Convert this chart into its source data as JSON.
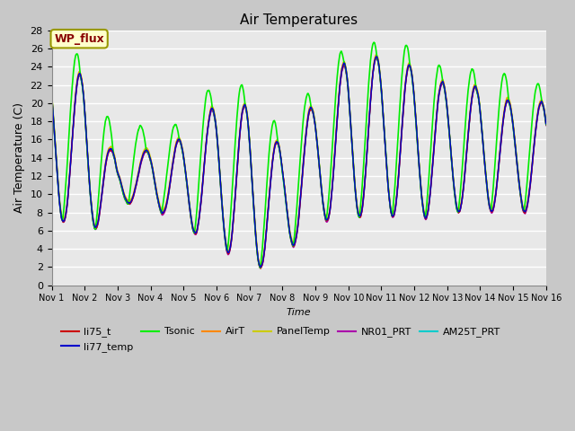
{
  "title": "Air Temperatures",
  "xlabel": "Time",
  "ylabel": "Air Temperature (C)",
  "ylim": [
    0,
    28
  ],
  "yticks": [
    0,
    2,
    4,
    6,
    8,
    10,
    12,
    14,
    16,
    18,
    20,
    22,
    24,
    26,
    28
  ],
  "xtick_labels": [
    "Nov 1",
    "Nov 2",
    "Nov 3",
    "Nov 4",
    "Nov 5",
    "Nov 6",
    "Nov 7",
    "Nov 8",
    "Nov 9",
    "Nov 10",
    "Nov 11",
    "Nov 12",
    "Nov 13",
    "Nov 14",
    "Nov 15",
    "Nov 16"
  ],
  "series": {
    "li75_t": {
      "color": "#cc0000",
      "lw": 1.0
    },
    "li77_temp": {
      "color": "#0000cc",
      "lw": 1.0
    },
    "Tsonic": {
      "color": "#00ee00",
      "lw": 1.2
    },
    "AirT": {
      "color": "#ff8800",
      "lw": 1.0
    },
    "PanelTemp": {
      "color": "#cccc00",
      "lw": 1.0
    },
    "NR01_PRT": {
      "color": "#aa00aa",
      "lw": 1.0
    },
    "AM25T_PRT": {
      "color": "#00cccc",
      "lw": 1.2
    }
  },
  "legend_label": "WP_flux",
  "legend_facecolor": "#ffffcc",
  "legend_edgecolor": "#999900",
  "legend_textcolor": "#880000",
  "plot_bg_color": "#e8e8e8",
  "fig_bg_color": "#c8c8c8",
  "n_points": 3000,
  "figsize": [
    6.4,
    4.8
  ],
  "dpi": 100
}
